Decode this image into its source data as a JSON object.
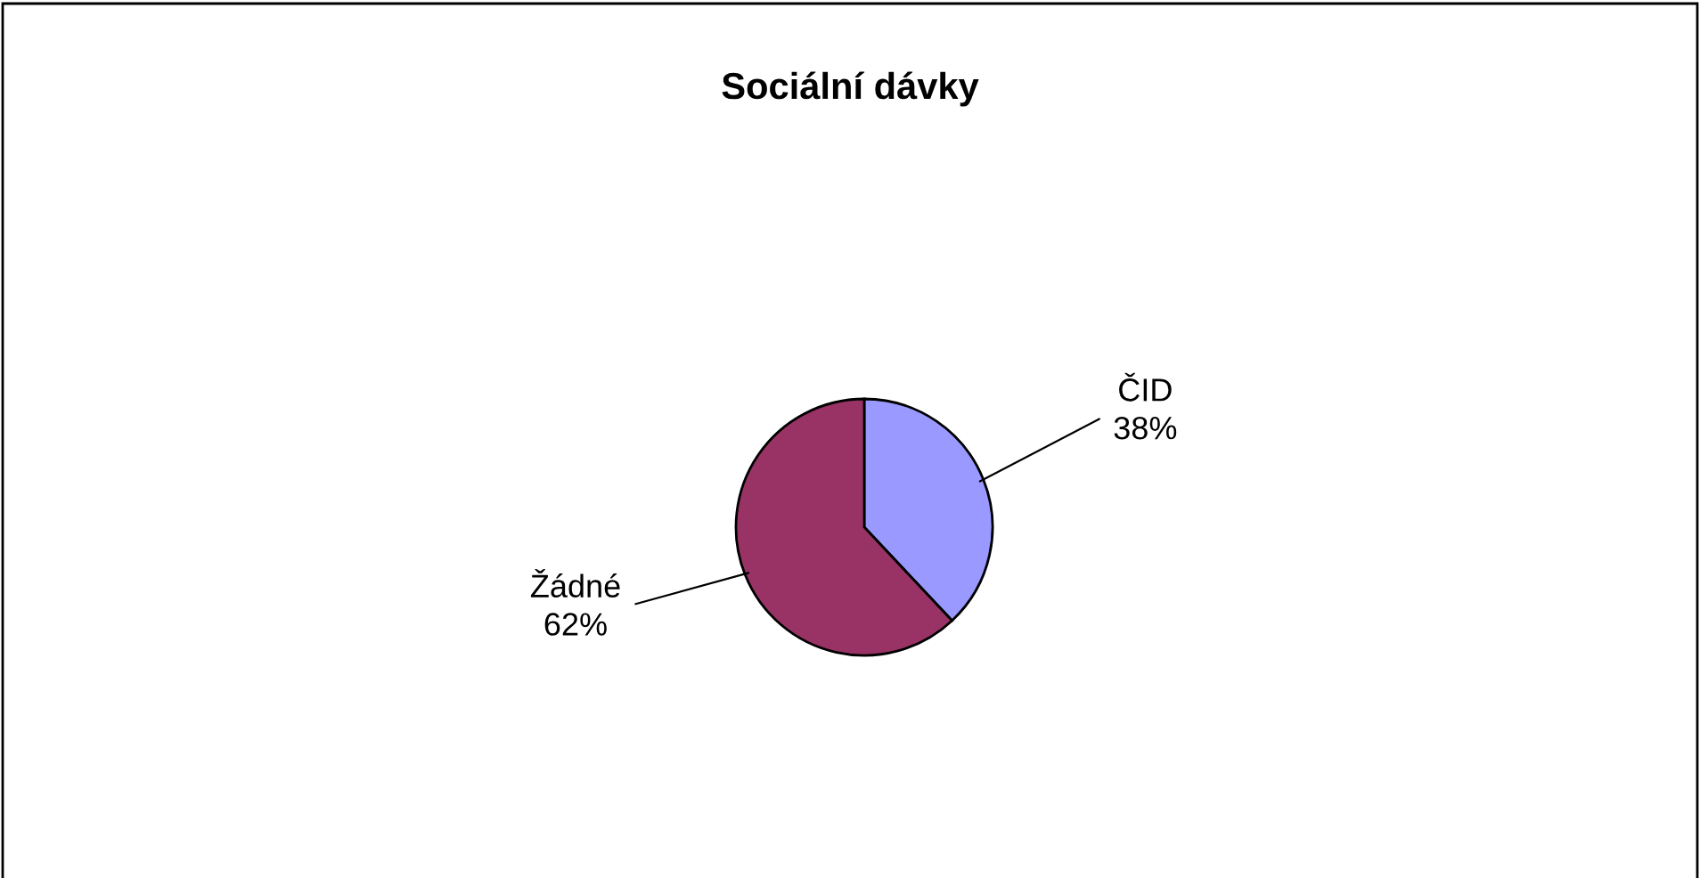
{
  "chart_data": {
    "type": "pie",
    "title": "Sociální dávky",
    "categories": [
      "ČID",
      "Žádné"
    ],
    "values": [
      38,
      62
    ],
    "colors": [
      "#9999ff",
      "#993366"
    ],
    "value_labels": [
      "38%",
      "62%"
    ]
  }
}
